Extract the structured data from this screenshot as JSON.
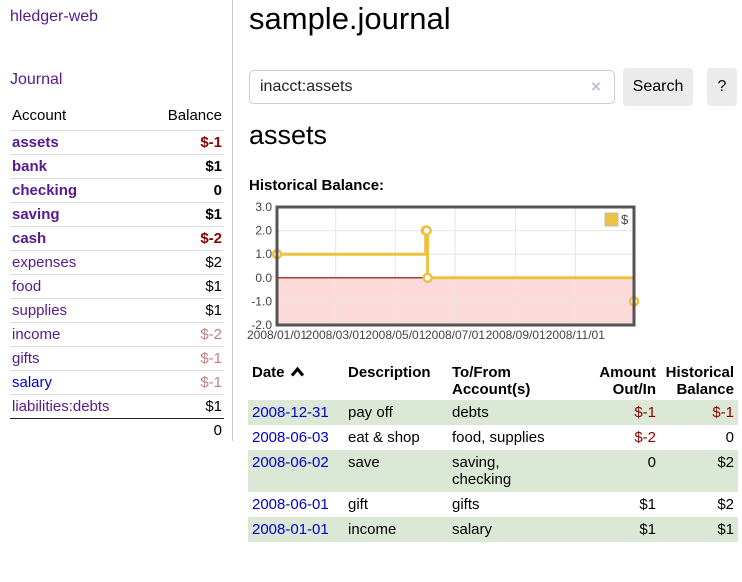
{
  "colors": {
    "accent_purple": "#551a8b",
    "link_blue": "#0000cc",
    "negative_strong": "#8b0000",
    "negative_soft": "#c4807f",
    "row_stripe_green": "#dbe8d6",
    "chart_line": "#edc240",
    "chart_border": "#545454",
    "grid_line": "#e6e6e6"
  },
  "sidebar": {
    "brand": "hledger-web",
    "journal_link": "Journal",
    "accounts_table": {
      "headers": {
        "account": "Account",
        "balance": "Balance"
      },
      "rows": [
        {
          "name": "assets",
          "indent": 0,
          "bold": true,
          "link_color": "purple",
          "balance": "$-1",
          "balance_style": "neg-strong"
        },
        {
          "name": "bank",
          "indent": 1,
          "bold": true,
          "link_color": "purple",
          "balance": "$1",
          "balance_style": "normal"
        },
        {
          "name": "checking",
          "indent": 2,
          "bold": true,
          "link_color": "purple",
          "balance": "0",
          "balance_style": "normal"
        },
        {
          "name": "saving",
          "indent": 2,
          "bold": true,
          "link_color": "purple",
          "balance": "$1",
          "balance_style": "normal"
        },
        {
          "name": "cash",
          "indent": 1,
          "bold": true,
          "link_color": "purple",
          "balance": "$-2",
          "balance_style": "neg-strong"
        },
        {
          "name": "expenses",
          "indent": 0,
          "bold": false,
          "link_color": "purple",
          "balance": "$2",
          "balance_style": "normal"
        },
        {
          "name": "food",
          "indent": 1,
          "bold": false,
          "link_color": "purple",
          "balance": "$1",
          "balance_style": "normal"
        },
        {
          "name": "supplies",
          "indent": 1,
          "bold": false,
          "link_color": "purple",
          "balance": "$1",
          "balance_style": "normal"
        },
        {
          "name": "income",
          "indent": 0,
          "bold": false,
          "link_color": "purple",
          "balance": "$-2",
          "balance_style": "neg-soft"
        },
        {
          "name": "gifts",
          "indent": 1,
          "bold": false,
          "link_color": "purple",
          "balance": "$-1",
          "balance_style": "neg-soft"
        },
        {
          "name": "salary",
          "indent": 1,
          "bold": false,
          "link_color": "blue",
          "balance": "$-1",
          "balance_style": "neg-soft"
        },
        {
          "name": "liabilities:debts",
          "indent": 0,
          "bold": false,
          "link_color": "purple",
          "balance": "$1",
          "balance_style": "normal"
        }
      ],
      "total": "0"
    }
  },
  "main": {
    "title": "sample.journal",
    "search": {
      "value": "inacct:assets",
      "clear_icon": "×",
      "button_label": "Search",
      "help_label": "?"
    },
    "account_heading": "assets",
    "chart_label": "Historical Balance:",
    "register": {
      "headers": {
        "date": "Date",
        "description": "Description",
        "account": "To/From\nAccount(s)",
        "amount": "Amount\nOut/In",
        "balance": "Historical\nBalance"
      },
      "rows": [
        {
          "date": "2008-12-31",
          "description": "pay off",
          "accounts": "debts",
          "amount": "$-1",
          "amount_neg": true,
          "balance": "$-1",
          "balance_neg": true
        },
        {
          "date": "2008-06-03",
          "description": "eat & shop",
          "accounts": "food, supplies",
          "amount": "$-2",
          "amount_neg": true,
          "balance": "0",
          "balance_neg": false
        },
        {
          "date": "2008-06-02",
          "description": "save",
          "accounts": "saving,\nchecking",
          "amount": "0",
          "amount_neg": false,
          "balance": "$2",
          "balance_neg": false
        },
        {
          "date": "2008-06-01",
          "description": "gift",
          "accounts": "gifts",
          "amount": "$1",
          "amount_neg": false,
          "balance": "$2",
          "balance_neg": false
        },
        {
          "date": "2008-01-01",
          "description": "income",
          "accounts": "salary",
          "amount": "$1",
          "amount_neg": false,
          "balance": "$1",
          "balance_neg": false
        }
      ]
    }
  },
  "chart_data": {
    "type": "line",
    "step": true,
    "title": "Historical Balance",
    "series": [
      {
        "name": "$",
        "color": "#edc240",
        "points": [
          [
            "2008-01-01",
            1
          ],
          [
            "2008-06-01",
            2
          ],
          [
            "2008-06-02",
            2
          ],
          [
            "2008-06-03",
            0
          ],
          [
            "2008-12-31",
            -1
          ]
        ]
      }
    ],
    "xlim": [
      "2008-01-01",
      "2008-12-31"
    ],
    "ylim": [
      -2,
      3
    ],
    "x_ticks": [
      "2008/01/01",
      "2008/03/01",
      "2008/05/01",
      "2008/07/01",
      "2008/09/01",
      "2008/11/01"
    ],
    "y_ticks": [
      "3.0",
      "2.0",
      "1.0",
      "0.0",
      "-1.0",
      "-2.0"
    ],
    "zero_line_color": "#8b0000",
    "negative_region_color": "#fcdada",
    "grid": true,
    "legend_position": "top-right"
  }
}
